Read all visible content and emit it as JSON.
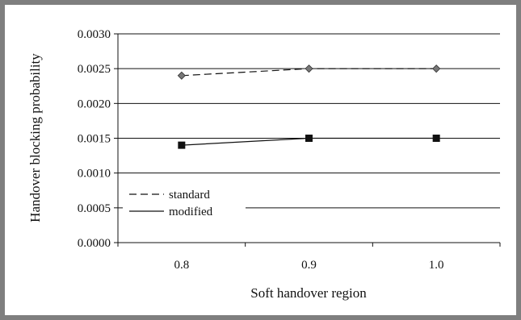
{
  "chart_data": {
    "type": "line",
    "title": "",
    "xlabel": "Soft handover region",
    "ylabel": "Handover blocking probability",
    "categories": [
      "0.8",
      "0.9",
      "1.0"
    ],
    "x": [
      0.8,
      0.9,
      1.0
    ],
    "xlim": [
      0.75,
      1.05
    ],
    "ylim": [
      0,
      0.003
    ],
    "yticks": [
      "0.0000",
      "0.0005",
      "0.0010",
      "0.0015",
      "0.0020",
      "0.0025",
      "0.0030"
    ],
    "grid": "horizontal",
    "legend_position": "bottom-left",
    "series": [
      {
        "name": "standard",
        "values": [
          0.0024,
          0.0025,
          0.0025
        ],
        "line_style": "dashed",
        "marker": "diamond",
        "color": "#111111",
        "marker_color": "#777777"
      },
      {
        "name": "modified",
        "values": [
          0.0014,
          0.0015,
          0.0015
        ],
        "line_style": "solid",
        "marker": "square",
        "color": "#111111",
        "marker_color": "#111111"
      }
    ]
  }
}
